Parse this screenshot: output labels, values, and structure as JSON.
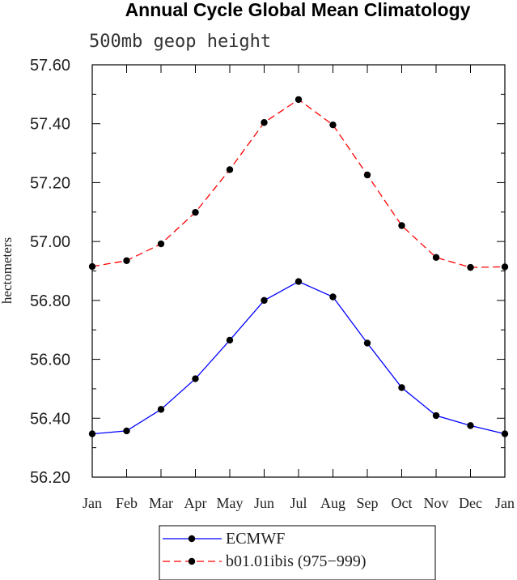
{
  "chart_data": {
    "type": "line",
    "title": "Annual Cycle Global Mean Climatology",
    "subtitle": "500mb geop height",
    "xlabel": "",
    "ylabel": "hectometers",
    "categories": [
      "Jan",
      "Feb",
      "Mar",
      "Apr",
      "May",
      "Jun",
      "Jul",
      "Aug",
      "Sep",
      "Oct",
      "Nov",
      "Dec",
      "Jan"
    ],
    "ylim": [
      56.2,
      57.6
    ],
    "yticks": [
      "56.20",
      "56.40",
      "56.60",
      "56.80",
      "57.00",
      "57.20",
      "57.40",
      "57.60"
    ],
    "grid": false,
    "legend_position": "bottom-center",
    "series": [
      {
        "name": "ECMWF",
        "color": "#0000ff",
        "line_style": "solid",
        "values": [
          56.347,
          56.357,
          56.43,
          56.534,
          56.665,
          56.8,
          56.864,
          56.812,
          56.655,
          56.504,
          56.409,
          56.375,
          56.347
        ]
      },
      {
        "name": "b01.01ibis (975−999)",
        "color": "#ff0000",
        "line_style": "dashed",
        "values": [
          56.915,
          56.935,
          56.992,
          57.099,
          57.244,
          57.404,
          57.482,
          57.396,
          57.226,
          57.054,
          56.946,
          56.912,
          56.914
        ]
      }
    ]
  }
}
